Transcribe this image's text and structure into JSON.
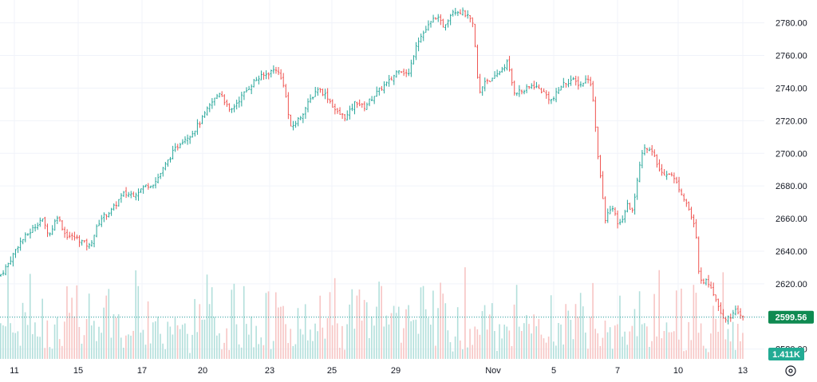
{
  "chart_data": {
    "type": "candlestick",
    "y_range": [
      2574,
      2794
    ],
    "y_ticks": [
      "2780.00",
      "2760.00",
      "2740.00",
      "2720.00",
      "2700.00",
      "2680.00",
      "2660.00",
      "2640.00",
      "2620.00",
      "2600.00",
      "2580.00"
    ],
    "x_ticks": [
      "11",
      "15",
      "17",
      "20",
      "23",
      "25",
      "29",
      "Nov",
      "5",
      "7",
      "10",
      "13"
    ],
    "price_path": [
      [
        0,
        2625
      ],
      [
        10,
        2632
      ],
      [
        24,
        2645
      ],
      [
        38,
        2652
      ],
      [
        52,
        2660
      ],
      [
        62,
        2650
      ],
      [
        72,
        2662
      ],
      [
        82,
        2650
      ],
      [
        96,
        2648
      ],
      [
        112,
        2643
      ],
      [
        126,
        2660
      ],
      [
        140,
        2665
      ],
      [
        154,
        2675
      ],
      [
        168,
        2675
      ],
      [
        182,
        2680
      ],
      [
        194,
        2682
      ],
      [
        204,
        2690
      ],
      [
        216,
        2700
      ],
      [
        228,
        2708
      ],
      [
        240,
        2712
      ],
      [
        252,
        2720
      ],
      [
        264,
        2730
      ],
      [
        276,
        2738
      ],
      [
        288,
        2725
      ],
      [
        298,
        2732
      ],
      [
        308,
        2738
      ],
      [
        320,
        2745
      ],
      [
        332,
        2748
      ],
      [
        346,
        2752
      ],
      [
        356,
        2742
      ],
      [
        364,
        2715
      ],
      [
        376,
        2722
      ],
      [
        388,
        2732
      ],
      [
        398,
        2740
      ],
      [
        410,
        2735
      ],
      [
        422,
        2725
      ],
      [
        434,
        2722
      ],
      [
        446,
        2732
      ],
      [
        456,
        2728
      ],
      [
        468,
        2735
      ],
      [
        478,
        2740
      ],
      [
        490,
        2745
      ],
      [
        500,
        2752
      ],
      [
        512,
        2748
      ],
      [
        522,
        2768
      ],
      [
        534,
        2776
      ],
      [
        546,
        2784
      ],
      [
        556,
        2778
      ],
      [
        568,
        2788
      ],
      [
        582,
        2786
      ],
      [
        592,
        2780
      ],
      [
        597,
        2758
      ],
      [
        600,
        2735
      ],
      [
        608,
        2745
      ],
      [
        618,
        2745
      ],
      [
        626,
        2750
      ],
      [
        636,
        2756
      ],
      [
        644,
        2738
      ],
      [
        656,
        2738
      ],
      [
        668,
        2742
      ],
      [
        680,
        2738
      ],
      [
        692,
        2732
      ],
      [
        704,
        2742
      ],
      [
        716,
        2745
      ],
      [
        728,
        2742
      ],
      [
        738,
        2747
      ],
      [
        744,
        2732
      ],
      [
        748,
        2705
      ],
      [
        754,
        2680
      ],
      [
        758,
        2658
      ],
      [
        766,
        2668
      ],
      [
        776,
        2655
      ],
      [
        786,
        2668
      ],
      [
        794,
        2665
      ],
      [
        800,
        2690
      ],
      [
        808,
        2705
      ],
      [
        818,
        2700
      ],
      [
        828,
        2688
      ],
      [
        840,
        2688
      ],
      [
        850,
        2680
      ],
      [
        858,
        2672
      ],
      [
        864,
        2665
      ],
      [
        872,
        2652
      ],
      [
        876,
        2625
      ],
      [
        882,
        2622
      ],
      [
        890,
        2620
      ],
      [
        898,
        2610
      ],
      [
        906,
        2600
      ],
      [
        914,
        2598
      ],
      [
        920,
        2605
      ],
      [
        926,
        2600
      ],
      [
        932,
        2599.56
      ]
    ],
    "volume_range": [
      0,
      1.6
    ],
    "last_price": "2599.56",
    "last_volume": "1.411K",
    "colors": {
      "up": "#26a69a",
      "down": "#ef5350",
      "price_line": "#26a69a",
      "price_badge": "#0f8a51",
      "volume_badge": "#22ab94"
    }
  },
  "ui": {
    "settings_icon": "gear-icon"
  }
}
